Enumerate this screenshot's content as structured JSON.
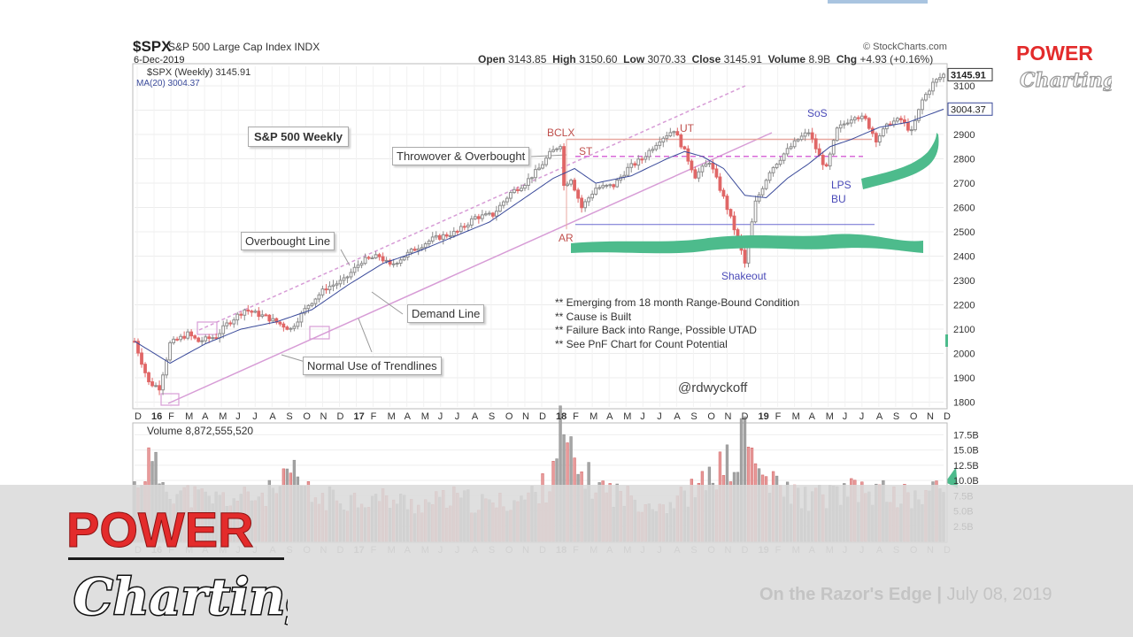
{
  "header": {
    "ticker": "$SPX",
    "ticker_name": "S&P 500 Large Cap Index INDX",
    "date": "6-Dec-2019",
    "credit": "© StockCharts.com",
    "open_label": "Open",
    "open": "3143.85",
    "high_label": "High",
    "high": "3150.60",
    "low_label": "Low",
    "low": "3070.33",
    "close_label": "Close",
    "close": "3145.91",
    "volume_label": "Volume",
    "volume": "8.9B",
    "chg_label": "Chg",
    "chg": "+4.93 (+0.16%)",
    "legend_price": "$SPX (Weekly) 3145.91",
    "legend_ma": "MA(20) 3004.37",
    "legend_volume": "Volume 8,872,555,520"
  },
  "annotations": {
    "title_box": "S&P 500 Weekly",
    "throwover": "Throwover & Overbought",
    "overbought_line": "Overbought Line",
    "demand_line": "Demand Line",
    "normal_use": "Normal Use of Trendlines",
    "bclx": "BCLX",
    "st": "ST",
    "ar": "AR",
    "ut": "UT",
    "sos": "SoS",
    "lps": "LPS",
    "bu": "BU",
    "shakeout": "Shakeout",
    "handle": "@rdwyckoff",
    "notes": [
      "** Emerging from 18 month Range-Bound Condition",
      "** Cause is Built",
      "** Failure Back into Range, Possible UTAD",
      "** See PnF Chart for Count Potential"
    ]
  },
  "chart_data": {
    "type": "candlestick",
    "title": "S&P 500 Weekly",
    "price_axis": {
      "ylim": [
        1780,
        3180
      ],
      "ticks": [
        1800,
        1900,
        2000,
        2100,
        2200,
        2300,
        2400,
        2500,
        2600,
        2700,
        2800,
        2900,
        3000,
        3100
      ]
    },
    "price_axis_labels": [
      "1800",
      "1900",
      "2000",
      "2100",
      "2200",
      "2300",
      "2400",
      "2500",
      "2600",
      "2700",
      "2800",
      "2900",
      "3000",
      "3100"
    ],
    "volume_axis": {
      "ylim": [
        0,
        19
      ],
      "ticks": [
        2.5,
        5,
        7.5,
        10,
        12.5,
        15,
        17.5
      ]
    },
    "volume_axis_labels": [
      "2.5B",
      "5.0B",
      "7.5B",
      "10.0B",
      "12.5B",
      "15.0B",
      "17.5B"
    ],
    "x_ticks": [
      "D",
      "16",
      "F",
      "M",
      "A",
      "M",
      "J",
      "J",
      "A",
      "S",
      "O",
      "N",
      "D",
      "17",
      "F",
      "M",
      "A",
      "M",
      "J",
      "J",
      "A",
      "S",
      "O",
      "N",
      "D",
      "18",
      "F",
      "M",
      "A",
      "M",
      "J",
      "J",
      "A",
      "S",
      "O",
      "N",
      "D",
      "19",
      "F",
      "M",
      "A",
      "M",
      "J",
      "J",
      "A",
      "S",
      "O",
      "N",
      "D"
    ],
    "price_tags": [
      "3145.91",
      "3004.37"
    ],
    "price_keypoints": [
      [
        0,
        2050
      ],
      [
        4,
        1880
      ],
      [
        7,
        1860
      ],
      [
        10,
        2040
      ],
      [
        15,
        2080
      ],
      [
        18,
        2050
      ],
      [
        23,
        2070
      ],
      [
        26,
        2120
      ],
      [
        31,
        2180
      ],
      [
        37,
        2150
      ],
      [
        44,
        2100
      ],
      [
        49,
        2200
      ],
      [
        54,
        2270
      ],
      [
        59,
        2300
      ],
      [
        64,
        2380
      ],
      [
        69,
        2400
      ],
      [
        72,
        2360
      ],
      [
        79,
        2430
      ],
      [
        84,
        2470
      ],
      [
        91,
        2500
      ],
      [
        96,
        2560
      ],
      [
        101,
        2570
      ],
      [
        106,
        2660
      ],
      [
        110,
        2700
      ],
      [
        114,
        2760
      ],
      [
        117,
        2820
      ],
      [
        120,
        2860
      ],
      [
        121,
        2690
      ],
      [
        123,
        2720
      ],
      [
        126,
        2600
      ],
      [
        130,
        2680
      ],
      [
        135,
        2690
      ],
      [
        139,
        2760
      ],
      [
        143,
        2800
      ],
      [
        148,
        2880
      ],
      [
        152,
        2920
      ],
      [
        155,
        2830
      ],
      [
        158,
        2730
      ],
      [
        162,
        2790
      ],
      [
        166,
        2640
      ],
      [
        170,
        2470
      ],
      [
        172,
        2370
      ],
      [
        175,
        2620
      ],
      [
        179,
        2750
      ],
      [
        183,
        2820
      ],
      [
        187,
        2880
      ],
      [
        190,
        2910
      ],
      [
        193,
        2810
      ],
      [
        195,
        2760
      ],
      [
        198,
        2920
      ],
      [
        203,
        2980
      ],
      [
        206,
        2960
      ],
      [
        209,
        2880
      ],
      [
        213,
        2950
      ],
      [
        216,
        2960
      ],
      [
        219,
        2910
      ],
      [
        222,
        3040
      ],
      [
        225,
        3110
      ],
      [
        228,
        3146
      ]
    ],
    "ma20_keypoints": [
      [
        0,
        2050
      ],
      [
        10,
        1960
      ],
      [
        20,
        2040
      ],
      [
        30,
        2100
      ],
      [
        40,
        2130
      ],
      [
        50,
        2180
      ],
      [
        60,
        2280
      ],
      [
        70,
        2370
      ],
      [
        80,
        2420
      ],
      [
        90,
        2480
      ],
      [
        100,
        2540
      ],
      [
        110,
        2640
      ],
      [
        118,
        2720
      ],
      [
        124,
        2760
      ],
      [
        130,
        2700
      ],
      [
        140,
        2730
      ],
      [
        150,
        2800
      ],
      [
        155,
        2830
      ],
      [
        160,
        2810
      ],
      [
        166,
        2760
      ],
      [
        172,
        2650
      ],
      [
        178,
        2640
      ],
      [
        184,
        2720
      ],
      [
        190,
        2780
      ],
      [
        196,
        2850
      ],
      [
        202,
        2880
      ],
      [
        210,
        2930
      ],
      [
        218,
        2950
      ],
      [
        228,
        3004
      ]
    ],
    "levels": {
      "bclx_resistance": 2880,
      "st_dashed": 2810,
      "ar_support": 2530
    },
    "volume_keypoints": [
      [
        0,
        9
      ],
      [
        4,
        13
      ],
      [
        8,
        10
      ],
      [
        12,
        8
      ],
      [
        20,
        7
      ],
      [
        30,
        7
      ],
      [
        40,
        8
      ],
      [
        45,
        11
      ],
      [
        50,
        7
      ],
      [
        60,
        7
      ],
      [
        70,
        7
      ],
      [
        80,
        6
      ],
      [
        90,
        7
      ],
      [
        100,
        6
      ],
      [
        110,
        7
      ],
      [
        116,
        9
      ],
      [
        120,
        18
      ],
      [
        124,
        12
      ],
      [
        130,
        9
      ],
      [
        140,
        7
      ],
      [
        150,
        6
      ],
      [
        160,
        9
      ],
      [
        165,
        12
      ],
      [
        170,
        13
      ],
      [
        172,
        19
      ],
      [
        175,
        12
      ],
      [
        180,
        9
      ],
      [
        190,
        7
      ],
      [
        200,
        8
      ],
      [
        210,
        8
      ],
      [
        220,
        7
      ],
      [
        228,
        8.9
      ]
    ]
  },
  "footer": {
    "title": "On the Razor's Edge",
    "separator": "|",
    "date": "July 08, 2019"
  },
  "logos": {
    "top_line1": "POWER",
    "top_line2": "Charting",
    "bottom_line1": "POWER",
    "bottom_line2": "Charting"
  },
  "colors": {
    "up": "#8c8c8c",
    "down": "#e06666",
    "ma": "#3a4a9a",
    "trend": "#d79cd6",
    "green_band": "#4dbb8c",
    "resistance": "#e8a8a0",
    "support": "#6a6ad0",
    "logo_red": "#e32b2b"
  }
}
